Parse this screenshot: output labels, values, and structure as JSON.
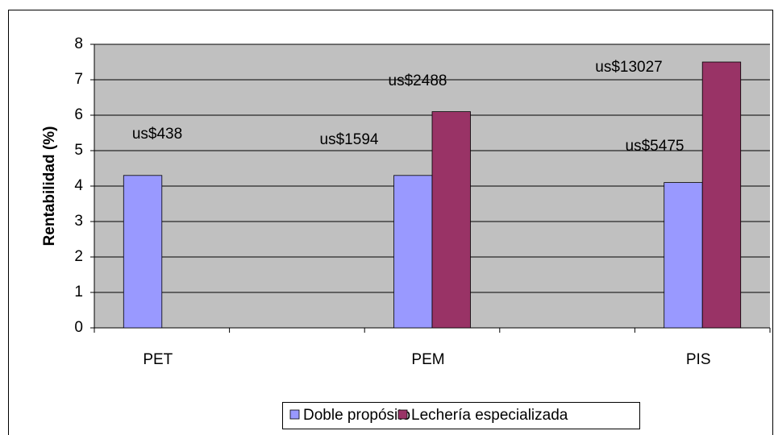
{
  "chart_data": {
    "type": "bar",
    "y_label": "Rentabilidad (%)",
    "categories": [
      "PET",
      "PEM",
      "PIS"
    ],
    "series": [
      {
        "name": "Doble propósito",
        "color": "#9999ff",
        "values": [
          4.3,
          4.3,
          4.1
        ],
        "labels": [
          "us$438",
          "us$1594",
          "us$5475"
        ]
      },
      {
        "name": "Lechería especializada",
        "color": "#993366",
        "values": [
          null,
          6.1,
          7.5
        ],
        "labels": [
          null,
          "us$2488",
          "us$13027"
        ]
      }
    ],
    "ylim": [
      0,
      8
    ],
    "yticks": [
      0,
      1,
      2,
      3,
      4,
      5,
      6,
      7,
      8
    ],
    "grid": true
  }
}
